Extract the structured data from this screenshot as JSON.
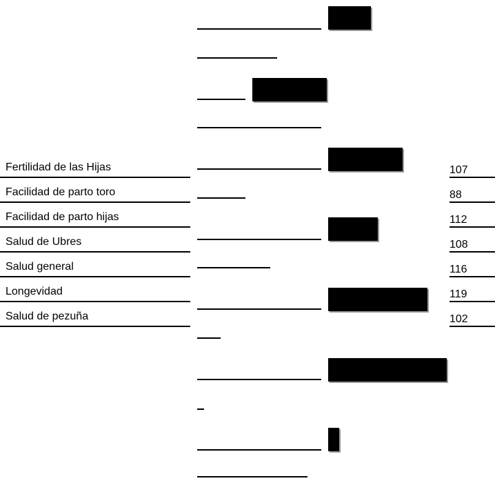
{
  "chart_data": {
    "type": "bar",
    "orientation": "horizontal",
    "categories": [
      "Fertilidad de las Hijas",
      "Facilidad de parto toro",
      "Facilidad de parto hijas",
      "Salud de Ubres",
      "Salud general",
      "Longevidad",
      "Salud de pezuña"
    ],
    "values": [
      107,
      88,
      112,
      108,
      116,
      119,
      102
    ],
    "title": "",
    "xlabel": "",
    "ylabel": "",
    "bar_color": "#000000",
    "grid": false
  }
}
